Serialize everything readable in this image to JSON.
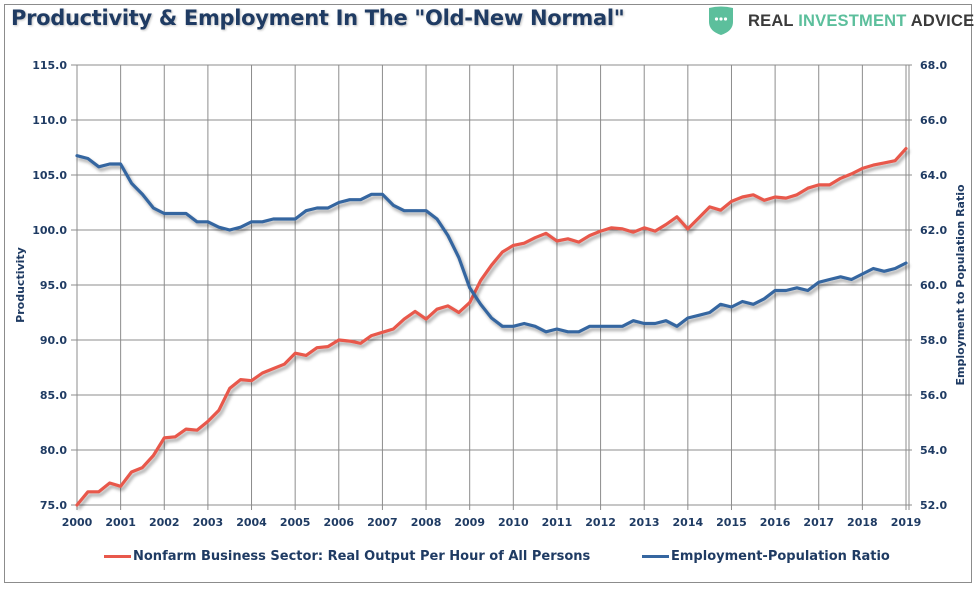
{
  "title": "Productivity & Employment In The \"Old-New Normal\"",
  "logo": {
    "word1": "REAL",
    "word2": "INVESTMENT",
    "word3": "ADVICE",
    "icon": "shield-dots-icon",
    "colors": {
      "shield": "#5cbf9c",
      "dark": "#3a3a3a"
    }
  },
  "chart_data": {
    "type": "line",
    "title": "Productivity & Employment In The \"Old-New Normal\"",
    "xlabel": "",
    "ylabel_left": "Productivity",
    "ylabel_right": "Employment to Population Ratio",
    "xlim": [
      2000,
      2019
    ],
    "ylim_left": [
      75.0,
      115.0
    ],
    "ylim_right": [
      52.0,
      68.0
    ],
    "x_ticks": [
      "2000",
      "2001",
      "2002",
      "2003",
      "2004",
      "2005",
      "2006",
      "2007",
      "2008",
      "2009",
      "2010",
      "2011",
      "2012",
      "2013",
      "2014",
      "2015",
      "2016",
      "2017",
      "2018",
      "2019"
    ],
    "y_ticks_left": [
      "75.0",
      "80.0",
      "85.0",
      "90.0",
      "95.0",
      "100.0",
      "105.0",
      "110.0",
      "115.0"
    ],
    "y_ticks_right": [
      "52.0",
      "54.0",
      "56.0",
      "58.0",
      "60.0",
      "62.0",
      "64.0",
      "66.0",
      "68.0"
    ],
    "grid": true,
    "legend_position": "bottom",
    "frequency": "quarterly",
    "x_start": 2000,
    "x_step": 0.25,
    "series": [
      {
        "name": "Nonfarm Business Sector: Real Output Per Hour of All Persons",
        "axis": "left",
        "color": "#e8584b",
        "values": [
          75.0,
          76.2,
          76.2,
          77.0,
          76.7,
          78.0,
          78.4,
          79.5,
          81.1,
          81.2,
          81.9,
          81.8,
          82.6,
          83.6,
          85.6,
          86.4,
          86.3,
          87.0,
          87.4,
          87.8,
          88.8,
          88.6,
          89.3,
          89.4,
          90.0,
          89.9,
          89.7,
          90.4,
          90.7,
          91.0,
          91.9,
          92.6,
          91.9,
          92.8,
          93.1,
          92.5,
          93.4,
          95.4,
          96.8,
          98.0,
          98.6,
          98.8,
          99.3,
          99.7,
          99.0,
          99.2,
          98.9,
          99.5,
          99.9,
          100.2,
          100.1,
          99.8,
          100.2,
          99.9,
          100.5,
          101.2,
          100.1,
          101.1,
          102.1,
          101.8,
          102.6,
          103.0,
          103.2,
          102.7,
          103.0,
          102.9,
          103.2,
          103.8,
          104.1,
          104.1,
          104.7,
          105.1,
          105.6,
          105.9,
          106.1,
          106.3,
          107.4
        ]
      },
      {
        "name": "Employment-Population Ratio",
        "axis": "right",
        "color": "#3566a0",
        "values": [
          64.7,
          64.6,
          64.3,
          64.4,
          64.4,
          63.7,
          63.3,
          62.8,
          62.6,
          62.6,
          62.6,
          62.3,
          62.3,
          62.1,
          62.0,
          62.1,
          62.3,
          62.3,
          62.4,
          62.4,
          62.4,
          62.7,
          62.8,
          62.8,
          63.0,
          63.1,
          63.1,
          63.3,
          63.3,
          62.9,
          62.7,
          62.7,
          62.7,
          62.4,
          61.8,
          61.0,
          59.9,
          59.3,
          58.8,
          58.5,
          58.5,
          58.6,
          58.5,
          58.3,
          58.4,
          58.3,
          58.3,
          58.5,
          58.5,
          58.5,
          58.5,
          58.7,
          58.6,
          58.6,
          58.7,
          58.5,
          58.8,
          58.9,
          59.0,
          59.3,
          59.2,
          59.4,
          59.3,
          59.5,
          59.8,
          59.8,
          59.9,
          59.8,
          60.1,
          60.2,
          60.3,
          60.2,
          60.4,
          60.6,
          60.5,
          60.6,
          60.8
        ]
      }
    ]
  },
  "legend": {
    "items": [
      {
        "label": "Nonfarm Business Sector: Real Output Per Hour of All Persons",
        "color": "#e8584b"
      },
      {
        "label": "Employment-Population Ratio",
        "color": "#3566a0"
      }
    ]
  }
}
